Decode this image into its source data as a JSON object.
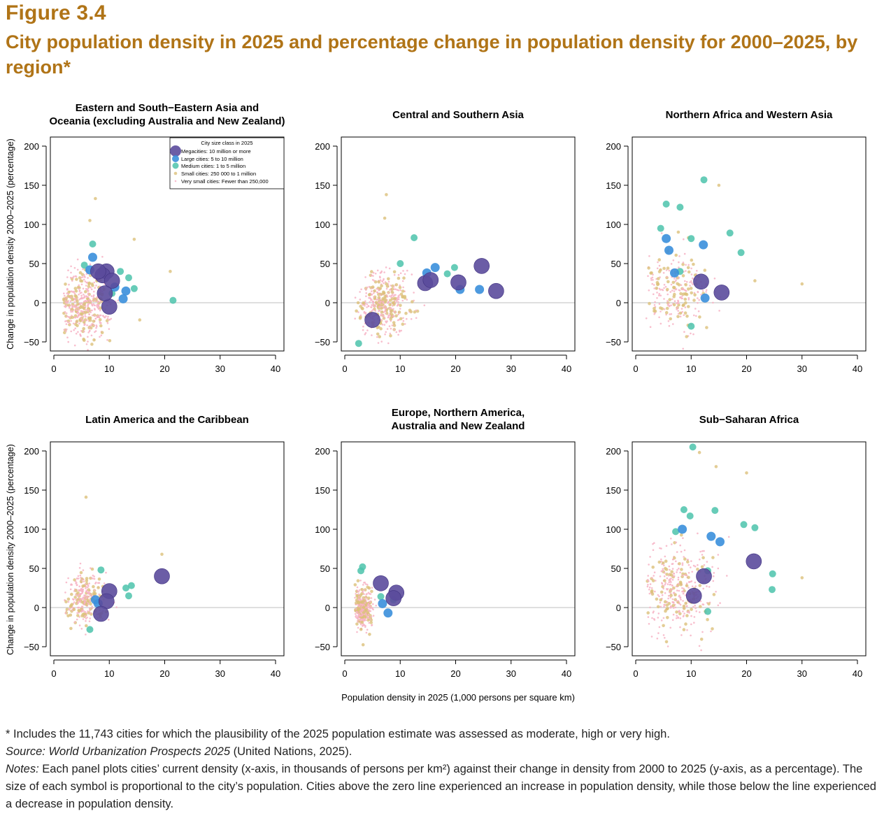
{
  "figure": {
    "label": "Figure 3.4",
    "title": "City population density in 2025 and percentage change in population density for 2000–2025, by region*"
  },
  "colors": {
    "mega": "#5b4b9c",
    "large": "#3a8fdc",
    "medium": "#4cc3ac",
    "small": "#dcc07a",
    "verysmall": "#f7b3c4",
    "zero_line": "#cccccc"
  },
  "axes": {
    "ylabel": "Change in population density 2000–2025 (percentage)",
    "xlabel": "Population density in 2025 (1,000 persons per square km)"
  },
  "legend": {
    "title": "City size class in 2025",
    "items": [
      {
        "key": "mega",
        "label": "Megacities: 10 million or more"
      },
      {
        "key": "large",
        "label": "Large cities: 5 to 10 million"
      },
      {
        "key": "medium",
        "label": "Medium cities: 1 to 5 million"
      },
      {
        "key": "small",
        "label": "Small cities: 250 000 to 1 million"
      },
      {
        "key": "verysmall",
        "label": "Very small cities: Fewer than 250,000"
      }
    ]
  },
  "chart_data": [
    {
      "type": "scatter",
      "title": "Eastern and South−Eastern Asia and\nOceania (excluding Australia and New Zealand)",
      "xlim": [
        0,
        40
      ],
      "ylim": [
        -55,
        205
      ],
      "xticks": [
        0,
        10,
        20,
        30,
        40
      ],
      "yticks": [
        -50,
        0,
        50,
        100,
        150,
        200
      ],
      "legend": true,
      "cloud": {
        "x_mean": 5.5,
        "x_sd": 2.2,
        "y_mean": -5,
        "y_sd": 22,
        "count": 460
      },
      "points": [
        {
          "x": 9.5,
          "y": 40,
          "size": "mega"
        },
        {
          "x": 8.8,
          "y": 35,
          "size": "mega"
        },
        {
          "x": 10.5,
          "y": 28,
          "size": "mega"
        },
        {
          "x": 10,
          "y": -5,
          "size": "mega"
        },
        {
          "x": 9.2,
          "y": 12,
          "size": "mega"
        },
        {
          "x": 8,
          "y": 40,
          "size": "mega"
        },
        {
          "x": 7,
          "y": 58,
          "size": "large"
        },
        {
          "x": 11,
          "y": 20,
          "size": "large"
        },
        {
          "x": 12.5,
          "y": 5,
          "size": "large"
        },
        {
          "x": 13,
          "y": 15,
          "size": "large"
        },
        {
          "x": 6.5,
          "y": 42,
          "size": "large"
        },
        {
          "x": 21.5,
          "y": 3,
          "size": "medium"
        },
        {
          "x": 13.5,
          "y": 32,
          "size": "medium"
        },
        {
          "x": 12,
          "y": 40,
          "size": "medium"
        },
        {
          "x": 7,
          "y": 75,
          "size": "medium"
        },
        {
          "x": 14.5,
          "y": 18,
          "size": "medium"
        },
        {
          "x": 10.5,
          "y": 12,
          "size": "medium"
        },
        {
          "x": 5.5,
          "y": 48,
          "size": "medium"
        },
        {
          "x": 7.5,
          "y": 133,
          "size": "small"
        },
        {
          "x": 6.5,
          "y": 105,
          "size": "small"
        },
        {
          "x": 14.5,
          "y": 81,
          "size": "small"
        },
        {
          "x": 21,
          "y": 40,
          "size": "small"
        },
        {
          "x": 15.5,
          "y": -22,
          "size": "small"
        }
      ]
    },
    {
      "type": "scatter",
      "title": "Central and Southern Asia",
      "xlim": [
        0,
        40
      ],
      "ylim": [
        -55,
        205
      ],
      "xticks": [
        0,
        10,
        20,
        30,
        40
      ],
      "yticks": [
        -50,
        0,
        50,
        100,
        150,
        200
      ],
      "legend": false,
      "cloud": {
        "x_mean": 7,
        "x_sd": 2.3,
        "y_mean": -2,
        "y_sd": 20,
        "count": 420
      },
      "points": [
        {
          "x": 24.7,
          "y": 47,
          "size": "mega"
        },
        {
          "x": 27.3,
          "y": 15,
          "size": "mega"
        },
        {
          "x": 20.5,
          "y": 26,
          "size": "mega"
        },
        {
          "x": 14.5,
          "y": 25,
          "size": "mega"
        },
        {
          "x": 15.5,
          "y": 29,
          "size": "mega"
        },
        {
          "x": 5,
          "y": -22,
          "size": "mega"
        },
        {
          "x": 16.3,
          "y": 45,
          "size": "large"
        },
        {
          "x": 14.8,
          "y": 38,
          "size": "large"
        },
        {
          "x": 20.8,
          "y": 17,
          "size": "large"
        },
        {
          "x": 24.3,
          "y": 17,
          "size": "large"
        },
        {
          "x": 19.8,
          "y": 45,
          "size": "medium"
        },
        {
          "x": 18.5,
          "y": 37,
          "size": "medium"
        },
        {
          "x": 12.5,
          "y": 83,
          "size": "medium"
        },
        {
          "x": 10,
          "y": 50,
          "size": "medium"
        },
        {
          "x": 2.5,
          "y": -52,
          "size": "medium"
        },
        {
          "x": 7.5,
          "y": 138,
          "size": "small"
        },
        {
          "x": 7.2,
          "y": 108,
          "size": "small"
        }
      ]
    },
    {
      "type": "scatter",
      "title": "Northern Africa and Western Asia",
      "xlim": [
        0,
        40
      ],
      "ylim": [
        -55,
        205
      ],
      "xticks": [
        0,
        10,
        20,
        30,
        40
      ],
      "yticks": [
        -50,
        0,
        50,
        100,
        150,
        200
      ],
      "legend": false,
      "cloud": {
        "x_mean": 7,
        "x_sd": 2.8,
        "y_mean": 15,
        "y_sd": 25,
        "count": 260
      },
      "points": [
        {
          "x": 15.5,
          "y": 13,
          "size": "mega"
        },
        {
          "x": 11.8,
          "y": 27,
          "size": "mega"
        },
        {
          "x": 6,
          "y": 67,
          "size": "large"
        },
        {
          "x": 12.2,
          "y": 74,
          "size": "large"
        },
        {
          "x": 5.5,
          "y": 82,
          "size": "large"
        },
        {
          "x": 12.5,
          "y": 6,
          "size": "large"
        },
        {
          "x": 7,
          "y": 38,
          "size": "large"
        },
        {
          "x": 12.3,
          "y": 157,
          "size": "medium"
        },
        {
          "x": 5.5,
          "y": 126,
          "size": "medium"
        },
        {
          "x": 8,
          "y": 122,
          "size": "medium"
        },
        {
          "x": 17,
          "y": 89,
          "size": "medium"
        },
        {
          "x": 4.5,
          "y": 95,
          "size": "medium"
        },
        {
          "x": 19,
          "y": 64,
          "size": "medium"
        },
        {
          "x": 10,
          "y": 82,
          "size": "medium"
        },
        {
          "x": 10,
          "y": -30,
          "size": "medium"
        },
        {
          "x": 8,
          "y": 40,
          "size": "medium"
        },
        {
          "x": 15,
          "y": 150,
          "size": "small"
        },
        {
          "x": 21.5,
          "y": 28,
          "size": "small"
        },
        {
          "x": 30,
          "y": 24,
          "size": "small"
        }
      ]
    },
    {
      "type": "scatter",
      "title": "Latin America and the Caribbean",
      "xlim": [
        0,
        40
      ],
      "ylim": [
        -55,
        205
      ],
      "xticks": [
        0,
        10,
        20,
        30,
        40
      ],
      "yticks": [
        -50,
        0,
        50,
        100,
        150,
        200
      ],
      "legend": false,
      "cloud": {
        "x_mean": 5.8,
        "x_sd": 1.8,
        "y_mean": 12,
        "y_sd": 17,
        "count": 300
      },
      "points": [
        {
          "x": 19.5,
          "y": 40,
          "size": "mega"
        },
        {
          "x": 10,
          "y": 21,
          "size": "mega"
        },
        {
          "x": 9.5,
          "y": 8,
          "size": "mega"
        },
        {
          "x": 8.5,
          "y": -8,
          "size": "mega"
        },
        {
          "x": 8,
          "y": 5,
          "size": "large"
        },
        {
          "x": 7.5,
          "y": 10,
          "size": "large"
        },
        {
          "x": 14,
          "y": 28,
          "size": "medium"
        },
        {
          "x": 13.5,
          "y": 15,
          "size": "medium"
        },
        {
          "x": 13,
          "y": 25,
          "size": "medium"
        },
        {
          "x": 6.5,
          "y": -28,
          "size": "medium"
        },
        {
          "x": 8.5,
          "y": 48,
          "size": "medium"
        },
        {
          "x": 5.8,
          "y": 141,
          "size": "small"
        },
        {
          "x": 19.5,
          "y": 68,
          "size": "small"
        }
      ]
    },
    {
      "type": "scatter",
      "title": "Europe, Northern America,\nAustralia and New Zealand",
      "xlim": [
        0,
        40
      ],
      "ylim": [
        -55,
        205
      ],
      "xticks": [
        0,
        10,
        20,
        30,
        40
      ],
      "yticks": [
        -50,
        0,
        50,
        100,
        150,
        200
      ],
      "legend": false,
      "cloud": {
        "x_mean": 3.2,
        "x_sd": 0.9,
        "y_mean": 0,
        "y_sd": 13,
        "count": 340
      },
      "points": [
        {
          "x": 6.5,
          "y": 31,
          "size": "mega"
        },
        {
          "x": 9.3,
          "y": 19,
          "size": "mega"
        },
        {
          "x": 8.8,
          "y": 12,
          "size": "mega"
        },
        {
          "x": 6.8,
          "y": 5,
          "size": "large"
        },
        {
          "x": 7.8,
          "y": -7,
          "size": "large"
        },
        {
          "x": 3.2,
          "y": 52,
          "size": "medium"
        },
        {
          "x": 2.9,
          "y": 47,
          "size": "medium"
        },
        {
          "x": 6.5,
          "y": 14,
          "size": "medium"
        },
        {
          "x": 8.8,
          "y": 10,
          "size": "medium"
        }
      ]
    },
    {
      "type": "scatter",
      "title": "Sub−Saharan Africa",
      "xlim": [
        0,
        40
      ],
      "ylim": [
        -55,
        205
      ],
      "xticks": [
        0,
        10,
        20,
        30,
        40
      ],
      "yticks": [
        -50,
        0,
        50,
        100,
        150,
        200
      ],
      "legend": false,
      "cloud": {
        "x_mean": 7.5,
        "x_sd": 3.2,
        "y_mean": 20,
        "y_sd": 28,
        "count": 380
      },
      "points": [
        {
          "x": 21.3,
          "y": 59,
          "size": "mega"
        },
        {
          "x": 10.5,
          "y": 15,
          "size": "mega"
        },
        {
          "x": 12.3,
          "y": 40,
          "size": "mega"
        },
        {
          "x": 13.6,
          "y": 91,
          "size": "large"
        },
        {
          "x": 15.2,
          "y": 84,
          "size": "large"
        },
        {
          "x": 8.4,
          "y": 100,
          "size": "large"
        },
        {
          "x": 10.3,
          "y": 205,
          "size": "medium"
        },
        {
          "x": 8.7,
          "y": 125,
          "size": "medium"
        },
        {
          "x": 9.8,
          "y": 117,
          "size": "medium"
        },
        {
          "x": 14.3,
          "y": 124,
          "size": "medium"
        },
        {
          "x": 21.5,
          "y": 102,
          "size": "medium"
        },
        {
          "x": 24.7,
          "y": 43,
          "size": "medium"
        },
        {
          "x": 24.6,
          "y": 23,
          "size": "medium"
        },
        {
          "x": 7.2,
          "y": 97,
          "size": "medium"
        },
        {
          "x": 13,
          "y": 47,
          "size": "medium"
        },
        {
          "x": 19.5,
          "y": 106,
          "size": "medium"
        },
        {
          "x": 13,
          "y": -5,
          "size": "medium"
        },
        {
          "x": 11.5,
          "y": 198,
          "size": "small"
        },
        {
          "x": 14.5,
          "y": 180,
          "size": "small"
        },
        {
          "x": 20,
          "y": 172,
          "size": "small"
        },
        {
          "x": 30,
          "y": 38,
          "size": "small"
        }
      ]
    }
  ],
  "notes": {
    "footnote": "* Includes the 11,743 cities for which the plausibility of the 2025 population estimate was assessed as moderate, high or very high.",
    "source_label": "Source:",
    "source_title": "World Urbanization Prospects 2025",
    "source_rest": " (United Nations, 2025).",
    "notes_label": "Notes:",
    "notes_text": " Each panel plots cities’ current density (x-axis, in thousands of persons per km²) against their change in density from 2000 to 2025 (y-axis, as a percentage). The size of each symbol is proportional to the city’s population. Cities above the zero line experienced an increase in population density, while those below the line experienced a decrease in population density."
  }
}
